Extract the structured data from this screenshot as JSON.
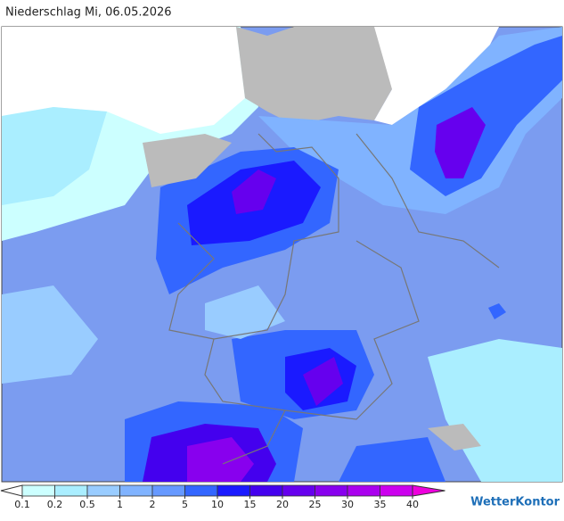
{
  "title": "Niederschlag Mi, 06.05.2026",
  "legend": {
    "ticks": [
      0.1,
      0.2,
      0.5,
      1,
      2,
      5,
      10,
      15,
      20,
      25,
      30,
      35,
      40
    ],
    "colors": [
      "#ffffff",
      "#ccffff",
      "#aaeeff",
      "#99ccff",
      "#80b3ff",
      "#6699ff",
      "#3366ff",
      "#1a1aff",
      "#4400ee",
      "#6600ee",
      "#8800ee",
      "#aa00ee",
      "#cc00ee",
      "#ee00dd"
    ]
  },
  "brand": "WetterKontor"
}
